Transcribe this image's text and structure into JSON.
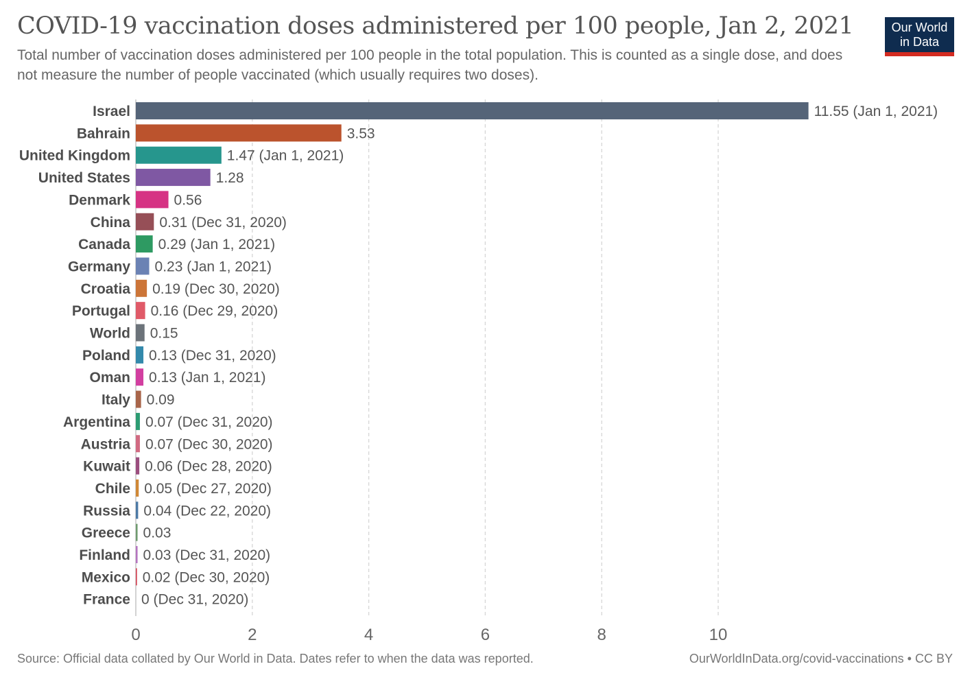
{
  "header": {
    "title": "COVID-19 vaccination doses administered per 100 people, Jan 2, 2021",
    "subtitle": "Total number of vaccination doses administered per 100 people in the total population. This is counted as a single dose, and does not measure the number of people vaccinated (which usually requires two doses).",
    "logo_line1": "Our World",
    "logo_line2": "in Data"
  },
  "footer": {
    "source": "Source: Official data collated by Our World in Data. Dates refer to when the data was reported.",
    "link": "OurWorldInData.org/covid-vaccinations • CC BY"
  },
  "chart_data": {
    "type": "bar",
    "orientation": "horizontal",
    "title": "COVID-19 vaccination doses administered per 100 people, Jan 2, 2021",
    "xlabel": "",
    "ylabel": "",
    "xlim": [
      0,
      11.55
    ],
    "xticks": [
      0,
      2,
      4,
      6,
      8,
      10
    ],
    "grid": true,
    "categories": [
      "Israel",
      "Bahrain",
      "United Kingdom",
      "United States",
      "Denmark",
      "China",
      "Canada",
      "Germany",
      "Croatia",
      "Portugal",
      "World",
      "Poland",
      "Oman",
      "Italy",
      "Argentina",
      "Austria",
      "Kuwait",
      "Chile",
      "Russia",
      "Greece",
      "Finland",
      "Mexico",
      "France"
    ],
    "values": [
      11.55,
      3.53,
      1.47,
      1.28,
      0.56,
      0.31,
      0.29,
      0.23,
      0.19,
      0.16,
      0.15,
      0.13,
      0.13,
      0.09,
      0.07,
      0.07,
      0.06,
      0.05,
      0.04,
      0.03,
      0.03,
      0.02,
      0
    ],
    "labels": [
      "11.55 (Jan 1, 2021)",
      "3.53",
      "1.47 (Jan 1, 2021)",
      "1.28",
      "0.56",
      "0.31 (Dec 31, 2020)",
      "0.29 (Jan 1, 2021)",
      "0.23 (Jan 1, 2021)",
      "0.19 (Dec 30, 2020)",
      "0.16 (Dec 29, 2020)",
      "0.15",
      "0.13 (Dec 31, 2020)",
      "0.13 (Jan 1, 2021)",
      "0.09",
      "0.07 (Dec 31, 2020)",
      "0.07 (Dec 30, 2020)",
      "0.06 (Dec 28, 2020)",
      "0.05 (Dec 27, 2020)",
      "0.04 (Dec 22, 2020)",
      "0.03",
      "0.03 (Dec 31, 2020)",
      "0.02 (Dec 30, 2020)",
      "0 (Dec 31, 2020)"
    ],
    "colors": [
      "#556478",
      "#bb532d",
      "#26968d",
      "#7f58a3",
      "#d63384",
      "#964f57",
      "#2e9a62",
      "#6b82b4",
      "#cc7538",
      "#e05a68",
      "#6c737a",
      "#3389ab",
      "#d23fa0",
      "#a8654a",
      "#2c9b72",
      "#d16a82",
      "#9b4e7e",
      "#d08836",
      "#4d7aa6",
      "#6f9b6f",
      "#b574c0",
      "#d34455",
      "#cccccc"
    ]
  }
}
